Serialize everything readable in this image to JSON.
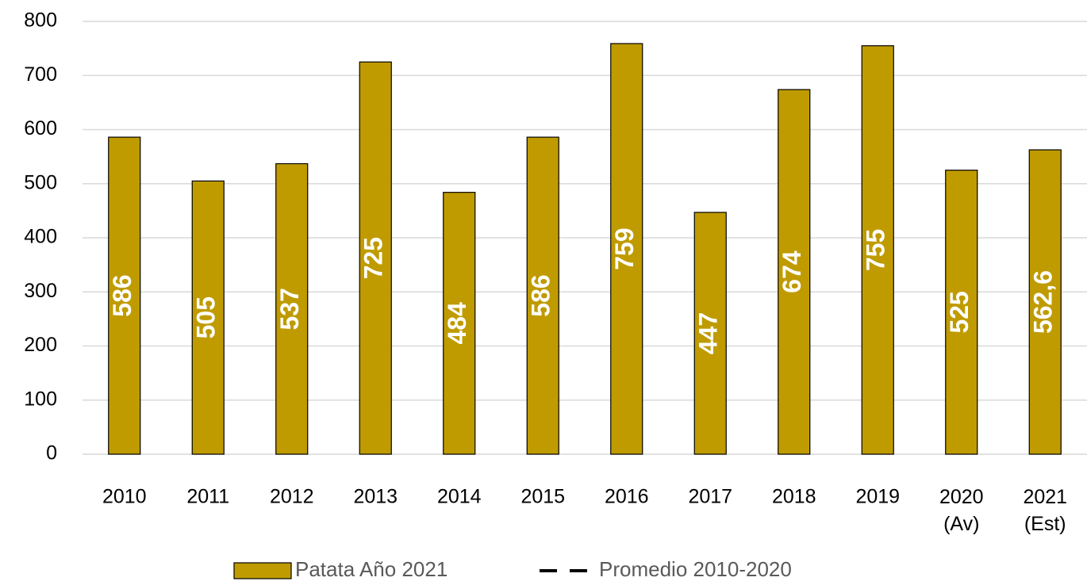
{
  "chart_data": {
    "type": "bar",
    "categories": [
      "2010",
      "2011",
      "2012",
      "2013",
      "2014",
      "2015",
      "2016",
      "2017",
      "2018",
      "2019",
      "2020 (Av)",
      "2021 (Est)"
    ],
    "series": [
      {
        "name": "Patata Año 2021",
        "type": "bar",
        "color": "#bf9b00",
        "values": [
          586,
          505,
          537,
          725,
          484,
          586,
          759,
          447,
          674,
          755,
          525,
          562.6
        ],
        "value_labels": [
          "586",
          "505",
          "537",
          "725",
          "484",
          "586",
          "759",
          "447",
          "674",
          "755",
          "525",
          "562,6"
        ]
      },
      {
        "name": "Promedio 2010-2020",
        "type": "line",
        "color": "#000000",
        "values": [
          null,
          null,
          null,
          null,
          null,
          null,
          null,
          null,
          null,
          null,
          null,
          null
        ]
      }
    ],
    "ylim": [
      0,
      800
    ],
    "yticks": [
      0,
      100,
      200,
      300,
      400,
      500,
      600,
      700,
      800
    ],
    "grid": true,
    "legend": "bottom"
  }
}
